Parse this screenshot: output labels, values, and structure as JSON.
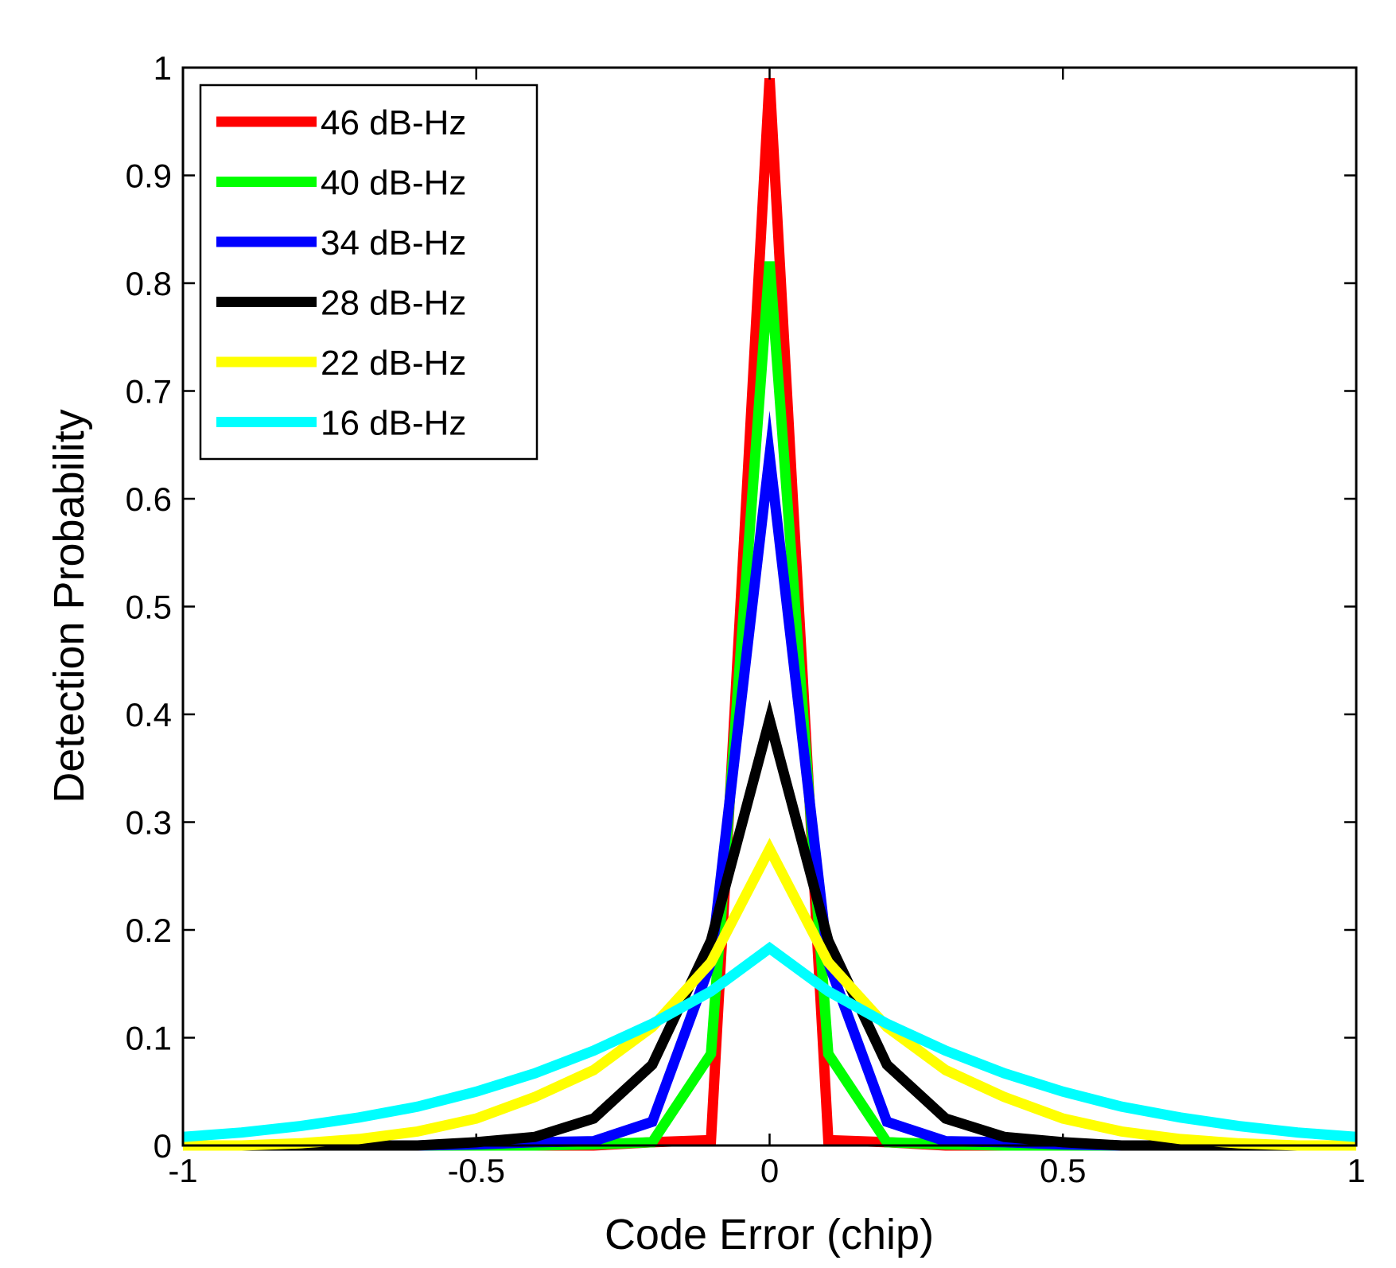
{
  "chart_data": {
    "type": "line",
    "title": "",
    "xlabel": "Code Error (chip)",
    "ylabel": "Detection Probability",
    "xlim": [
      -1,
      1
    ],
    "ylim": [
      0,
      1
    ],
    "grid": false,
    "legend_position": "top-left",
    "x_ticks": [
      {
        "value": -1,
        "label": "-1"
      },
      {
        "value": -0.5,
        "label": "-0.5"
      },
      {
        "value": 0,
        "label": "0"
      },
      {
        "value": 0.5,
        "label": "0.5"
      },
      {
        "value": 1,
        "label": "1"
      }
    ],
    "y_ticks": [
      {
        "value": 0,
        "label": "0"
      },
      {
        "value": 0.1,
        "label": "0.1"
      },
      {
        "value": 0.2,
        "label": "0.2"
      },
      {
        "value": 0.3,
        "label": "0.3"
      },
      {
        "value": 0.4,
        "label": "0.4"
      },
      {
        "value": 0.5,
        "label": "0.5"
      },
      {
        "value": 0.6,
        "label": "0.6"
      },
      {
        "value": 0.7,
        "label": "0.7"
      },
      {
        "value": 0.8,
        "label": "0.8"
      },
      {
        "value": 0.9,
        "label": "0.9"
      },
      {
        "value": 1,
        "label": "1"
      }
    ],
    "x": [
      -1,
      -0.9,
      -0.8,
      -0.7,
      -0.6,
      -0.5,
      -0.4,
      -0.3,
      -0.2,
      -0.1,
      0,
      0.1,
      0.2,
      0.3,
      0.4,
      0.5,
      0.6,
      0.7,
      0.8,
      0.9,
      1
    ],
    "series": [
      {
        "name": "46 dB-Hz",
        "color": "#ff0000",
        "values": [
          0,
          0,
          0,
          0,
          0,
          0,
          0,
          0,
          0.003,
          0.005,
          0.99,
          0.005,
          0.003,
          0,
          0,
          0,
          0,
          0,
          0,
          0,
          0
        ]
      },
      {
        "name": "40 dB-Hz",
        "color": "#00ff00",
        "values": [
          0,
          0,
          0,
          0,
          0,
          0,
          0,
          0.001,
          0.003,
          0.085,
          0.82,
          0.085,
          0.003,
          0.001,
          0,
          0,
          0,
          0,
          0,
          0,
          0
        ]
      },
      {
        "name": "34 dB-Hz",
        "color": "#0000ff",
        "values": [
          0,
          0,
          0,
          0,
          0,
          0.001,
          0.003,
          0.004,
          0.022,
          0.17,
          0.64,
          0.17,
          0.022,
          0.004,
          0.003,
          0.001,
          0,
          0,
          0,
          0,
          0
        ]
      },
      {
        "name": "28 dB-Hz",
        "color": "#000000",
        "values": [
          0,
          0,
          0,
          0,
          0,
          0.003,
          0.008,
          0.025,
          0.075,
          0.19,
          0.395,
          0.19,
          0.075,
          0.025,
          0.008,
          0.003,
          0,
          0,
          0,
          0,
          0
        ]
      },
      {
        "name": "22 dB-Hz",
        "color": "#ffff00",
        "values": [
          0,
          0,
          0.002,
          0.006,
          0.013,
          0.025,
          0.045,
          0.07,
          0.11,
          0.17,
          0.275,
          0.17,
          0.11,
          0.07,
          0.045,
          0.025,
          0.013,
          0.006,
          0.002,
          0,
          0
        ]
      },
      {
        "name": "16 dB-Hz",
        "color": "#00ffff",
        "values": [
          0.008,
          0.012,
          0.018,
          0.026,
          0.036,
          0.05,
          0.067,
          0.088,
          0.113,
          0.143,
          0.183,
          0.143,
          0.113,
          0.088,
          0.067,
          0.05,
          0.036,
          0.026,
          0.018,
          0.012,
          0.008
        ]
      }
    ]
  }
}
